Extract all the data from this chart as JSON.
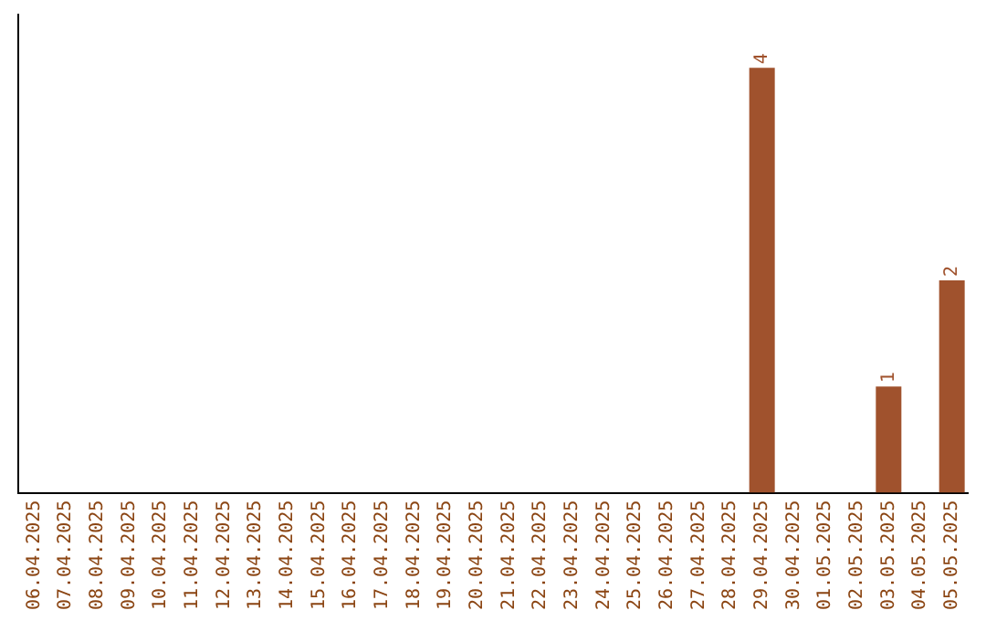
{
  "chart_data": {
    "type": "bar",
    "categories": [
      "06.04.2025",
      "07.04.2025",
      "08.04.2025",
      "09.04.2025",
      "10.04.2025",
      "11.04.2025",
      "12.04.2025",
      "13.04.2025",
      "14.04.2025",
      "15.04.2025",
      "16.04.2025",
      "17.04.2025",
      "18.04.2025",
      "19.04.2025",
      "20.04.2025",
      "21.04.2025",
      "22.04.2025",
      "23.04.2025",
      "24.04.2025",
      "25.04.2025",
      "26.04.2025",
      "27.04.2025",
      "28.04.2025",
      "29.04.2025",
      "30.04.2025",
      "01.05.2025",
      "02.05.2025",
      "03.05.2025",
      "04.05.2025",
      "05.05.2025"
    ],
    "values": [
      null,
      null,
      null,
      null,
      null,
      null,
      null,
      null,
      null,
      null,
      null,
      null,
      null,
      null,
      null,
      null,
      null,
      null,
      null,
      null,
      null,
      null,
      null,
      4,
      null,
      null,
      null,
      1,
      null,
      2
    ],
    "data_labels": true,
    "color": "#a0522d",
    "tick_labels": "x",
    "grid": false,
    "legend": false
  }
}
